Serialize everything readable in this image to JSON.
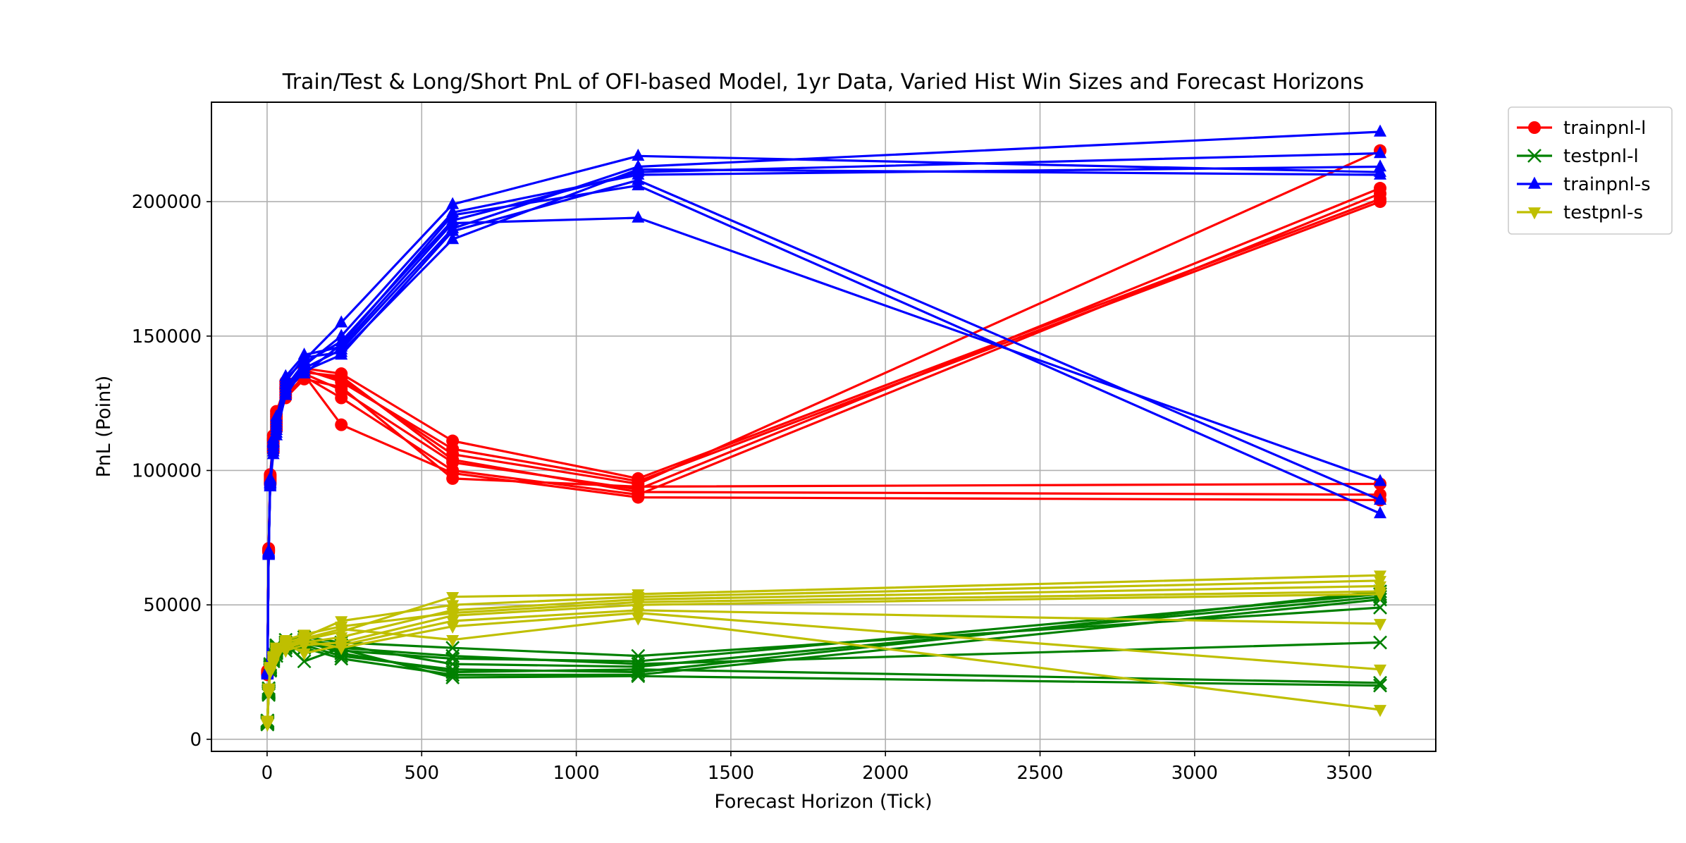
{
  "chart_data": {
    "type": "line",
    "title": "Train/Test & Long/Short PnL of OFI-based Model, 1yr Data, Varied Hist Win Sizes and Forecast Horizons",
    "xlabel": "Forecast Horizon (Tick)",
    "ylabel": "PnL (Point)",
    "xlim": [
      -180,
      3780
    ],
    "ylim": [
      -4500,
      237000
    ],
    "xticks": [
      0,
      500,
      1000,
      1500,
      2000,
      2500,
      3000,
      3500
    ],
    "yticks": [
      0,
      50000,
      100000,
      150000,
      200000
    ],
    "grid": true,
    "legend_position": "outside-upper-right",
    "x": [
      1,
      5,
      10,
      20,
      30,
      60,
      120,
      240,
      600,
      1200,
      3600
    ],
    "series": [
      {
        "name": "trainpnl-l",
        "color": "#ff0000",
        "marker": "circle",
        "runs": [
          [
            25000,
            70000,
            96000,
            109000,
            118000,
            130000,
            137000,
            134000,
            106000,
            95000,
            219000
          ],
          [
            24500,
            70500,
            97000,
            111000,
            120000,
            132000,
            136000,
            130000,
            103000,
            93000,
            205000
          ],
          [
            24000,
            69500,
            95500,
            107000,
            115000,
            128000,
            135000,
            127000,
            100000,
            91000,
            203000
          ],
          [
            25500,
            71000,
            98000,
            112000,
            122000,
            131000,
            138000,
            136000,
            111000,
            97000,
            201000
          ],
          [
            24800,
            70200,
            96500,
            110000,
            119000,
            129000,
            137500,
            133000,
            108000,
            96000,
            200000
          ],
          [
            24200,
            69800,
            97500,
            108000,
            117000,
            127000,
            134000,
            131000,
            97000,
            94000,
            95000
          ],
          [
            25200,
            70800,
            95000,
            113000,
            121000,
            133000,
            136500,
            135000,
            104000,
            92000,
            91000
          ],
          [
            24600,
            70400,
            98500,
            111500,
            116000,
            130500,
            135500,
            117000,
            99000,
            90000,
            89000
          ]
        ]
      },
      {
        "name": "testpnl-l",
        "color": "#008000",
        "marker": "x",
        "runs": [
          [
            6000,
            17000,
            26000,
            30000,
            33000,
            35000,
            36000,
            33000,
            30000,
            29000,
            54000
          ],
          [
            6500,
            18000,
            27000,
            31000,
            34000,
            36000,
            37000,
            35000,
            28000,
            27000,
            53000
          ],
          [
            5500,
            16500,
            25500,
            29000,
            32000,
            34000,
            35000,
            31000,
            26000,
            25000,
            55000
          ],
          [
            7000,
            19000,
            28000,
            32000,
            35000,
            37000,
            38000,
            36000,
            34000,
            31000,
            49000
          ],
          [
            6200,
            17500,
            26500,
            30500,
            31000,
            33000,
            34000,
            30000,
            24000,
            24000,
            52000
          ],
          [
            6800,
            18500,
            27500,
            31500,
            33500,
            35500,
            29000,
            34000,
            31000,
            28000,
            36000
          ],
          [
            5800,
            17200,
            25800,
            29500,
            32500,
            34500,
            36500,
            32000,
            25000,
            26000,
            21000
          ],
          [
            6400,
            17800,
            26800,
            30800,
            34500,
            36000,
            35500,
            33500,
            23000,
            23500,
            20000
          ]
        ]
      },
      {
        "name": "trainpnl-s",
        "color": "#0000ff",
        "marker": "triangle-up",
        "runs": [
          [
            25000,
            69000,
            95000,
            107000,
            114000,
            128000,
            138000,
            145000,
            190000,
            213000,
            226000
          ],
          [
            24500,
            69500,
            96000,
            110000,
            117000,
            131000,
            140000,
            148000,
            193000,
            211000,
            218000
          ],
          [
            24000,
            68500,
            94000,
            108000,
            116000,
            130000,
            139000,
            150000,
            196000,
            210000,
            213000
          ],
          [
            25500,
            70000,
            97000,
            111000,
            119000,
            134000,
            141000,
            155000,
            199000,
            217000,
            211000
          ],
          [
            24800,
            69200,
            95500,
            109000,
            115000,
            133000,
            142000,
            144000,
            186000,
            212000,
            210000
          ],
          [
            24200,
            68800,
            96500,
            112000,
            118000,
            135000,
            143000,
            146000,
            192000,
            194000,
            96000
          ],
          [
            25200,
            69800,
            94500,
            106000,
            113000,
            129000,
            137000,
            143000,
            189000,
            208000,
            89000
          ],
          [
            24600,
            69400,
            95200,
            110500,
            120000,
            132000,
            136000,
            147000,
            195000,
            206000,
            84000
          ]
        ]
      },
      {
        "name": "testpnl-s",
        "color": "#bfbf00",
        "marker": "triangle-down",
        "runs": [
          [
            6000,
            18000,
            26000,
            29000,
            32000,
            35000,
            37000,
            40000,
            53000,
            54000,
            61000
          ],
          [
            7000,
            19000,
            27000,
            30000,
            33000,
            36000,
            38000,
            44000,
            50000,
            53000,
            59000
          ],
          [
            5500,
            17000,
            25000,
            28000,
            31000,
            34000,
            36000,
            38000,
            48000,
            52000,
            57000
          ],
          [
            6500,
            18500,
            26500,
            31000,
            34000,
            37000,
            39000,
            42000,
            47000,
            51000,
            55000
          ],
          [
            6200,
            17500,
            25500,
            29500,
            32500,
            33000,
            35000,
            36000,
            46000,
            50000,
            54000
          ],
          [
            6800,
            18200,
            26200,
            30500,
            33500,
            35500,
            32000,
            35000,
            44000,
            48000,
            43000
          ],
          [
            5800,
            17800,
            25800,
            28500,
            31500,
            34500,
            36500,
            34000,
            42000,
            47000,
            26000
          ],
          [
            6400,
            18800,
            26800,
            30200,
            34200,
            36200,
            37500,
            41000,
            37000,
            45000,
            11000
          ]
        ]
      }
    ]
  }
}
